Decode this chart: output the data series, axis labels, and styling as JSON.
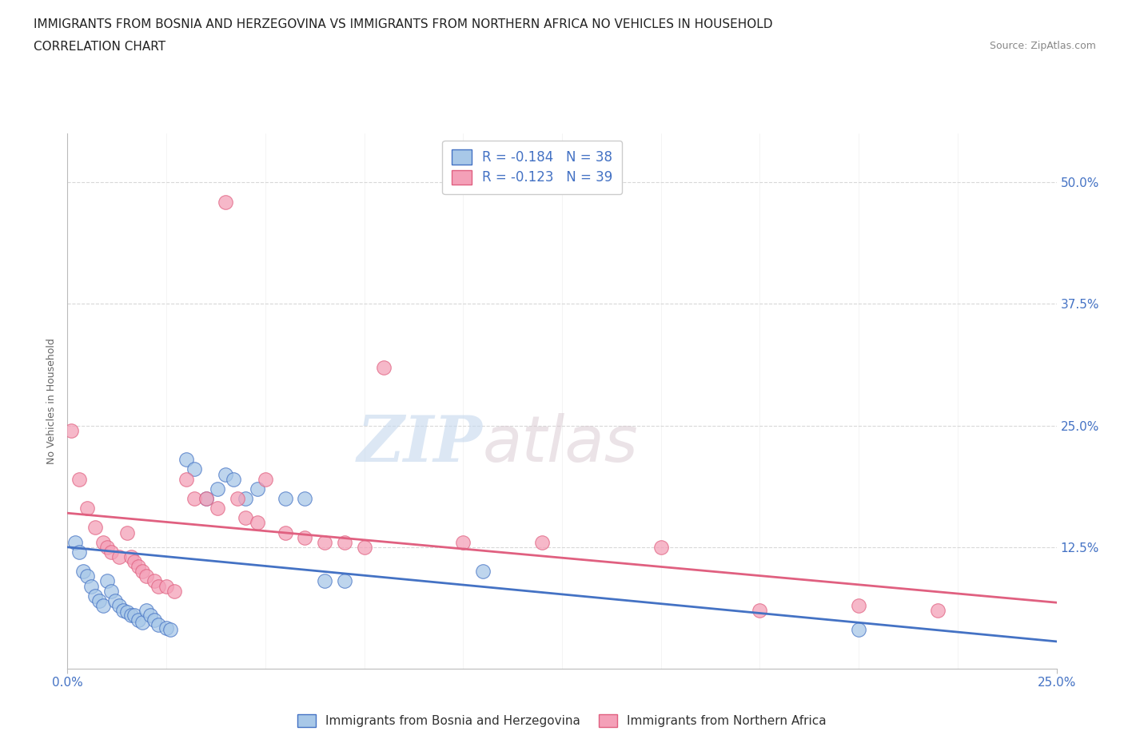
{
  "title_line1": "IMMIGRANTS FROM BOSNIA AND HERZEGOVINA VS IMMIGRANTS FROM NORTHERN AFRICA NO VEHICLES IN HOUSEHOLD",
  "title_line2": "CORRELATION CHART",
  "source": "Source: ZipAtlas.com",
  "ylabel": "No Vehicles in Household",
  "xlim": [
    0.0,
    0.25
  ],
  "ylim": [
    0.0,
    0.55
  ],
  "yticks": [
    0.0,
    0.125,
    0.25,
    0.375,
    0.5
  ],
  "yticklabels": [
    "",
    "12.5%",
    "25.0%",
    "37.5%",
    "50.0%"
  ],
  "legend1_label": "R = -0.184   N = 38",
  "legend2_label": "R = -0.123   N = 39",
  "legend_bottom_label1": "Immigrants from Bosnia and Herzegovina",
  "legend_bottom_label2": "Immigrants from Northern Africa",
  "color_blue": "#a8c8e8",
  "color_pink": "#f4a0b8",
  "color_blue_line": "#4472c4",
  "color_pink_line": "#e06080",
  "color_text": "#4472c4",
  "watermark_zip": "ZIP",
  "watermark_atlas": "atlas",
  "blue_scatter_x": [
    0.002,
    0.003,
    0.004,
    0.005,
    0.006,
    0.007,
    0.008,
    0.009,
    0.01,
    0.011,
    0.012,
    0.013,
    0.014,
    0.015,
    0.016,
    0.017,
    0.018,
    0.019,
    0.02,
    0.021,
    0.022,
    0.023,
    0.025,
    0.026,
    0.03,
    0.032,
    0.035,
    0.038,
    0.04,
    0.042,
    0.045,
    0.048,
    0.055,
    0.06,
    0.065,
    0.07,
    0.105,
    0.2
  ],
  "blue_scatter_y": [
    0.13,
    0.12,
    0.1,
    0.095,
    0.085,
    0.075,
    0.07,
    0.065,
    0.09,
    0.08,
    0.07,
    0.065,
    0.06,
    0.058,
    0.055,
    0.055,
    0.05,
    0.048,
    0.06,
    0.055,
    0.05,
    0.045,
    0.042,
    0.04,
    0.215,
    0.205,
    0.175,
    0.185,
    0.2,
    0.195,
    0.175,
    0.185,
    0.175,
    0.175,
    0.09,
    0.09,
    0.1,
    0.04
  ],
  "pink_scatter_x": [
    0.001,
    0.003,
    0.005,
    0.007,
    0.009,
    0.01,
    0.011,
    0.013,
    0.015,
    0.016,
    0.017,
    0.018,
    0.019,
    0.02,
    0.022,
    0.023,
    0.025,
    0.027,
    0.03,
    0.032,
    0.035,
    0.038,
    0.04,
    0.043,
    0.045,
    0.048,
    0.05,
    0.055,
    0.06,
    0.065,
    0.07,
    0.075,
    0.08,
    0.1,
    0.12,
    0.15,
    0.175,
    0.2,
    0.22
  ],
  "pink_scatter_y": [
    0.245,
    0.195,
    0.165,
    0.145,
    0.13,
    0.125,
    0.12,
    0.115,
    0.14,
    0.115,
    0.11,
    0.105,
    0.1,
    0.095,
    0.09,
    0.085,
    0.085,
    0.08,
    0.195,
    0.175,
    0.175,
    0.165,
    0.48,
    0.175,
    0.155,
    0.15,
    0.195,
    0.14,
    0.135,
    0.13,
    0.13,
    0.125,
    0.31,
    0.13,
    0.13,
    0.125,
    0.06,
    0.065,
    0.06
  ],
  "blue_line_y_start": 0.125,
  "blue_line_y_end": 0.028,
  "pink_line_y_start": 0.16,
  "pink_line_y_end": 0.068,
  "grid_color": "#d8d8d8",
  "bg_color": "#ffffff",
  "title_fontsize": 11,
  "subtitle_fontsize": 11,
  "axis_label_color": "#4472c4"
}
